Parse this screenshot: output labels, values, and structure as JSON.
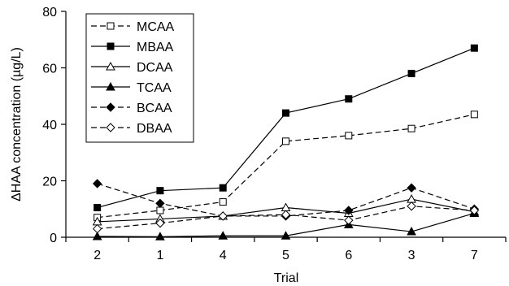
{
  "chart_data": {
    "type": "line",
    "title": "",
    "xlabel": "Trial",
    "ylabel": "ΔHAA concentration (µg/L)",
    "categories": [
      "2",
      "1",
      "4",
      "5",
      "6",
      "3",
      "7"
    ],
    "yticks": [
      "0",
      "20",
      "40",
      "60",
      "80"
    ],
    "ylim": [
      0,
      80
    ],
    "grid": false,
    "legend_position": "top-left",
    "series": [
      {
        "name": "MCAA",
        "values": [
          7,
          9.5,
          12.5,
          34,
          36,
          38.5,
          43.5
        ],
        "line": "dashed",
        "marker": "square",
        "filled": false
      },
      {
        "name": "MBAA",
        "values": [
          10.5,
          16.5,
          17.5,
          44,
          49,
          58,
          67
        ],
        "line": "solid",
        "marker": "square",
        "filled": true
      },
      {
        "name": "DCAA",
        "values": [
          5.5,
          6.5,
          7.5,
          10.5,
          8.5,
          13.5,
          9
        ],
        "line": "solid",
        "marker": "triangle",
        "filled": false
      },
      {
        "name": "TCAA",
        "values": [
          0.3,
          0.2,
          0.5,
          0.5,
          4.5,
          2,
          8.5
        ],
        "line": "solid",
        "marker": "triangle",
        "filled": true
      },
      {
        "name": "BCAA",
        "values": [
          19,
          12,
          7.5,
          7.5,
          9.5,
          17.5,
          10
        ],
        "line": "dashed",
        "marker": "diamond",
        "filled": true
      },
      {
        "name": "DBAA",
        "values": [
          3,
          5,
          7.5,
          8,
          6,
          11,
          9.5
        ],
        "line": "dashed",
        "marker": "diamond",
        "filled": false
      }
    ]
  }
}
